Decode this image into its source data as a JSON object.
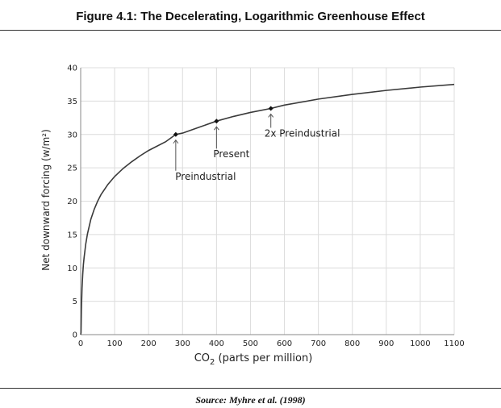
{
  "header": {
    "title": "Figure 4.1: The Decelerating, Logarithmic Greenhouse Effect"
  },
  "footer": {
    "source": "Source: Myhre et al. (1998)"
  },
  "chart_data": {
    "type": "line",
    "title": "Figure 4.1: The Decelerating, Logarithmic Greenhouse Effect",
    "xlabel_prefix": "CO",
    "xlabel_sub": "2",
    "xlabel_suffix": " (parts per million)",
    "ylabel": "Net downward forcing (w/m²)",
    "xlim": [
      0,
      1100
    ],
    "ylim": [
      0,
      40
    ],
    "xticks": [
      0,
      100,
      200,
      300,
      400,
      500,
      600,
      700,
      800,
      900,
      1000,
      1100
    ],
    "yticks": [
      0,
      5,
      10,
      15,
      20,
      25,
      30,
      35,
      40
    ],
    "grid": true,
    "curve": {
      "x": [
        1,
        2,
        4,
        6,
        8,
        10,
        15,
        20,
        30,
        40,
        50,
        60,
        80,
        100,
        125,
        150,
        175,
        200,
        250,
        280,
        300,
        350,
        400,
        450,
        500,
        560,
        600,
        700,
        800,
        900,
        1000,
        1100
      ],
      "y": [
        0.3,
        3.5,
        7.0,
        9.0,
        10.5,
        11.5,
        13.6,
        15.1,
        17.3,
        18.8,
        20.0,
        21.0,
        22.5,
        23.7,
        24.9,
        25.9,
        26.8,
        27.6,
        28.9,
        30.0,
        30.2,
        31.1,
        32.0,
        32.7,
        33.3,
        33.9,
        34.4,
        35.3,
        36.0,
        36.6,
        37.1,
        37.5
      ]
    },
    "points": [
      {
        "label": "Preindustrial",
        "x": 280,
        "y": 30.0
      },
      {
        "label": "Present",
        "x": 400,
        "y": 32.0
      },
      {
        "label": "2x Preindustrial",
        "x": 560,
        "y": 33.9
      }
    ],
    "colors": {
      "line": "#3a3a3a",
      "grid": "#dcdcdc",
      "axis": "#8a8a8a",
      "point": "#111111"
    }
  }
}
